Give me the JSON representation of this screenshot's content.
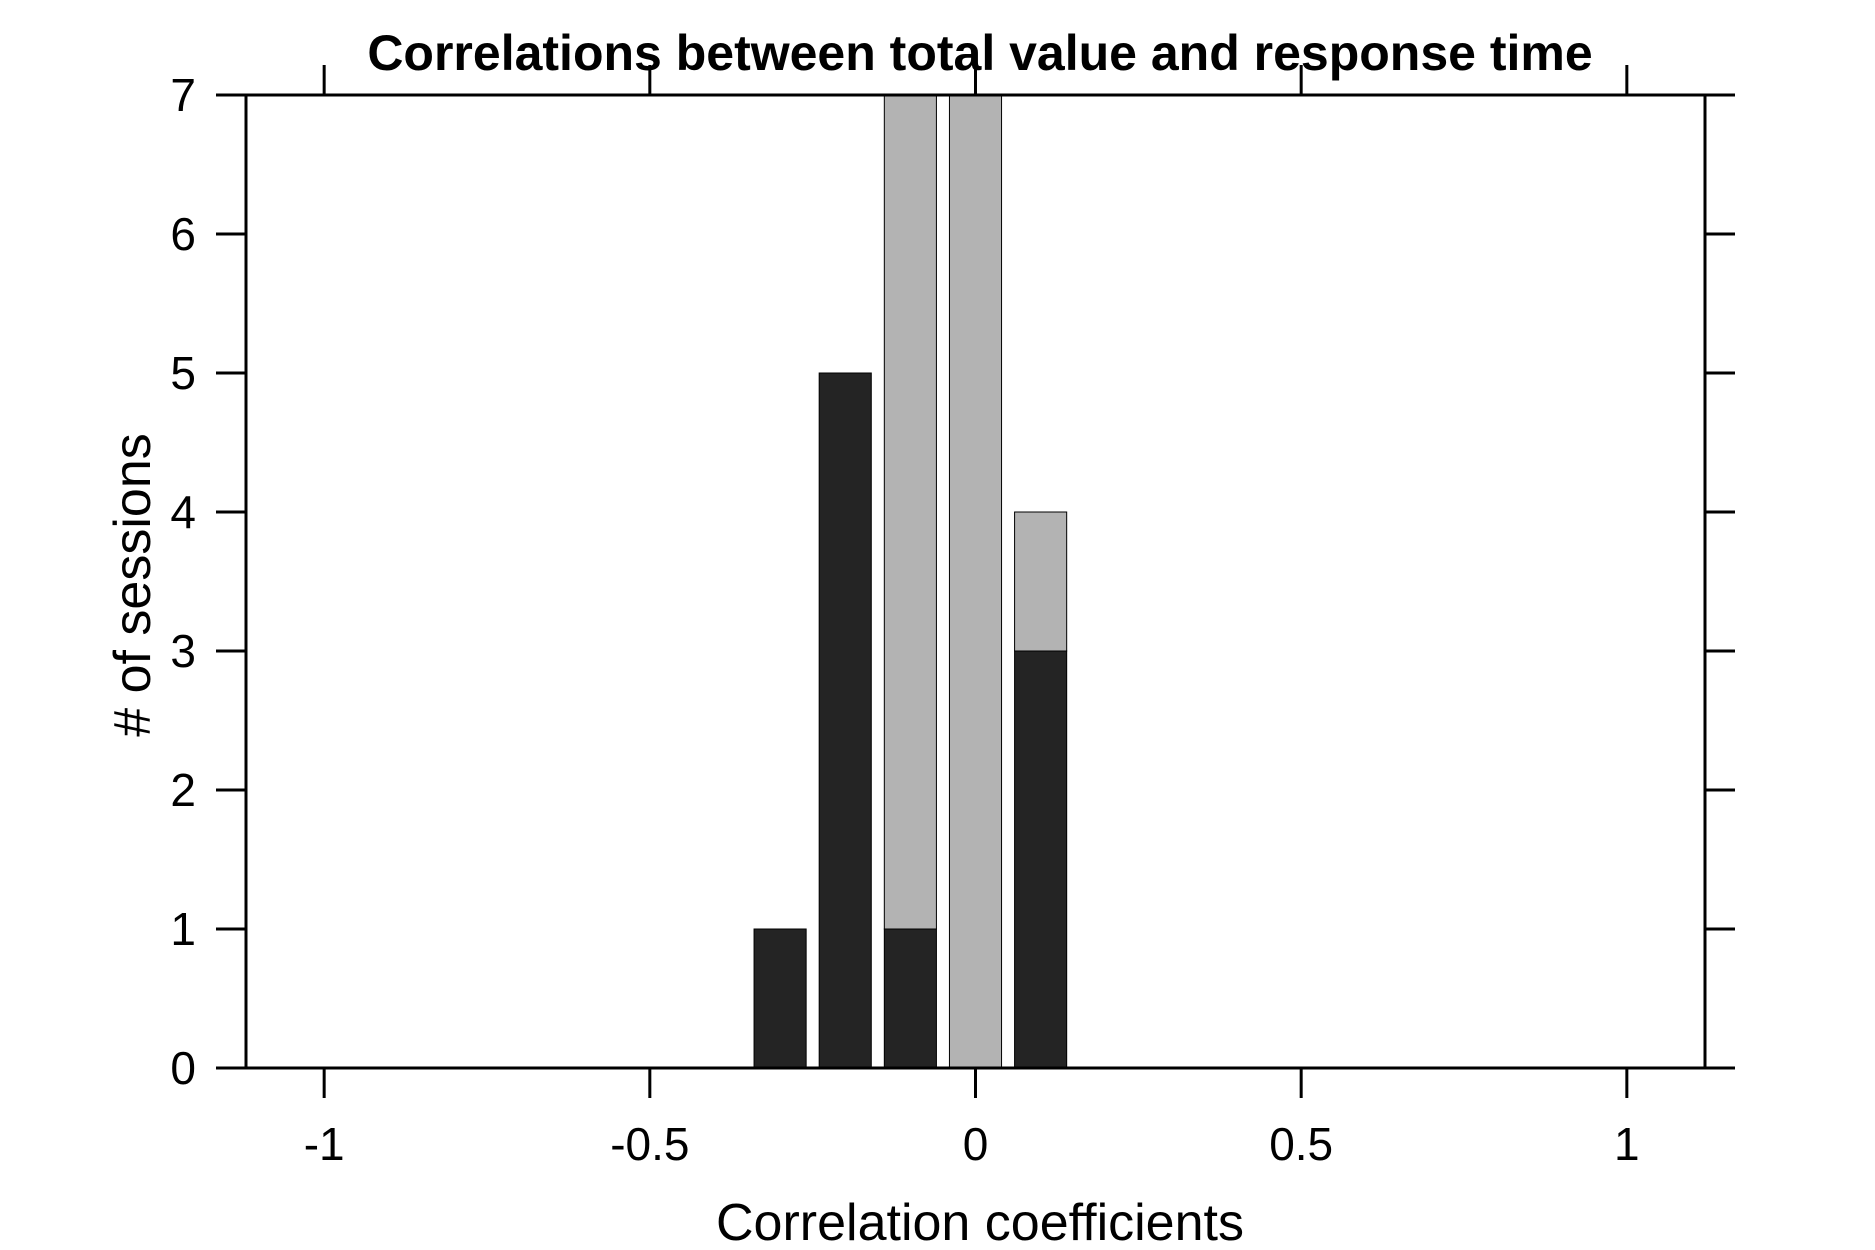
{
  "chart_data": {
    "type": "bar",
    "title": "Correlations between total value and response time",
    "xlabel": "Correlation coefficients",
    "ylabel": "# of sessions",
    "xlim": [
      -1.12,
      1.12
    ],
    "ylim": [
      0,
      7
    ],
    "x_ticks": [
      -1,
      -0.5,
      0,
      0.5,
      1
    ],
    "x_tick_labels": [
      "-1",
      "-0.5",
      "0",
      "0.5",
      "1"
    ],
    "y_ticks": [
      0,
      1,
      2,
      3,
      4,
      5,
      6,
      7
    ],
    "y_tick_labels": [
      "0",
      "1",
      "2",
      "3",
      "4",
      "5",
      "6",
      "7"
    ],
    "bin_centers": [
      -0.3,
      -0.2,
      -0.1,
      0.0,
      0.1
    ],
    "bar_width": 0.08,
    "stacked": true,
    "grid": false,
    "legend": "none",
    "series": [
      {
        "color": "#242424",
        "values": [
          1,
          5,
          1,
          0,
          3
        ]
      },
      {
        "color": "#b3b3b3",
        "values": [
          0,
          0,
          6,
          7,
          1
        ]
      }
    ]
  }
}
